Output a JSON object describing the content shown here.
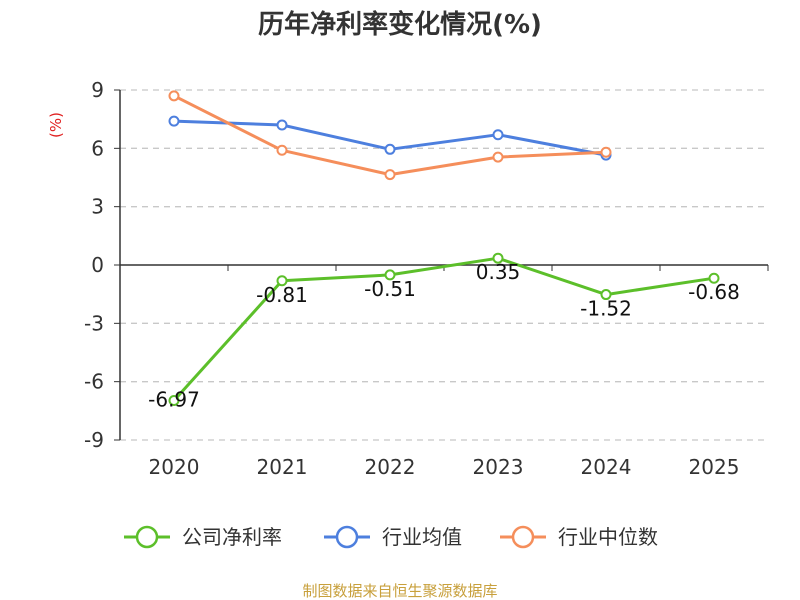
{
  "chart_data": {
    "type": "line",
    "title": "历年净利率变化情况(%)",
    "unit_label": "(%)",
    "categories": [
      "2020",
      "2021",
      "2022",
      "2023",
      "2024",
      "2025"
    ],
    "ylim": [
      -9,
      9
    ],
    "yticks": [
      "9",
      "6",
      "3",
      "0",
      "-3",
      "-6",
      "-9"
    ],
    "grid": true,
    "legend_position": "bottom",
    "series": [
      {
        "name": "公司净利率",
        "color": "#5cbf2a",
        "values": [
          -6.97,
          -0.81,
          -0.51,
          0.35,
          -1.52,
          -0.68
        ],
        "labels": [
          "-6.97",
          "-0.81",
          "-0.51",
          "0.35",
          "-1.52",
          "-0.68"
        ]
      },
      {
        "name": "行业均值",
        "color": "#4d7fde",
        "values": [
          7.4,
          7.2,
          5.95,
          6.7,
          5.65,
          null
        ]
      },
      {
        "name": "行业中位数",
        "color": "#f58e5b",
        "values": [
          8.7,
          5.9,
          4.65,
          5.55,
          5.8,
          null
        ]
      }
    ]
  },
  "source_text": "制图数据来自恒生聚源数据库",
  "colors": {
    "axis": "#333333",
    "grid": "#c8c8c8",
    "unit": "#e02020",
    "source": "#c8a03c"
  }
}
